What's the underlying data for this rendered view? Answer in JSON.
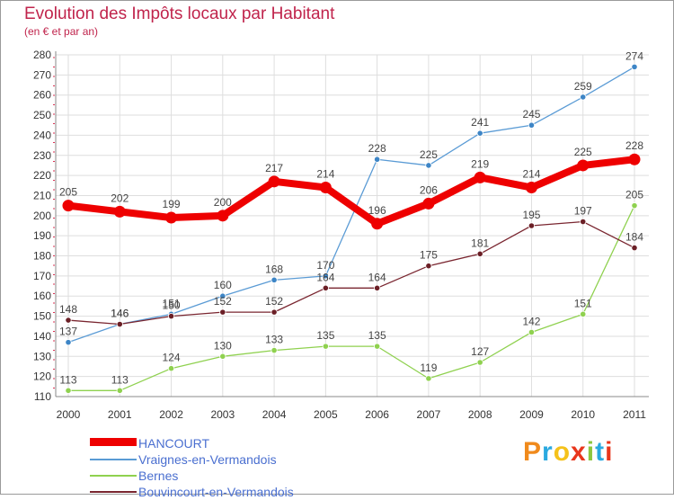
{
  "chart_data": {
    "type": "line",
    "title": "Evolution des Impôts locaux par Habitant",
    "subtitle": "(en € et par an)",
    "categories": [
      "2000",
      "2001",
      "2002",
      "2003",
      "2004",
      "2005",
      "2006",
      "2007",
      "2008",
      "2009",
      "2010",
      "2011"
    ],
    "ylim": [
      110,
      280
    ],
    "yticks": [
      110,
      120,
      130,
      140,
      150,
      160,
      170,
      180,
      190,
      200,
      210,
      220,
      230,
      240,
      250,
      260,
      270,
      280
    ],
    "series": [
      {
        "name": "Vraignes-en-Vermandois",
        "color": "#5a9bd5",
        "marker": "#3d85c6",
        "values": [
          137,
          146,
          151,
          160,
          168,
          170,
          228,
          225,
          241,
          245,
          259,
          274
        ]
      },
      {
        "name": "Bernes",
        "color": "#8fd14f",
        "marker": "#8fd14f",
        "values": [
          113,
          113,
          124,
          130,
          133,
          135,
          135,
          119,
          127,
          142,
          151,
          205
        ]
      },
      {
        "name": "Bouvincourt-en-Vermandois",
        "color": "#7a2630",
        "marker": "#6b1f26",
        "values": [
          148,
          146,
          150,
          152,
          152,
          164,
          164,
          175,
          181,
          195,
          197,
          184
        ]
      },
      {
        "name": "HANCOURT",
        "color": "#ee0000",
        "marker": "#ee0000",
        "values": [
          205,
          202,
          199,
          200,
          217,
          214,
          196,
          206,
          219,
          214,
          225,
          228
        ]
      }
    ],
    "legend": [
      "HANCOURT",
      "Vraignes-en-Vermandois",
      "Bernes",
      "Bouvincourt-en-Vermandois"
    ]
  },
  "logo": {
    "text": "Proxiti"
  }
}
